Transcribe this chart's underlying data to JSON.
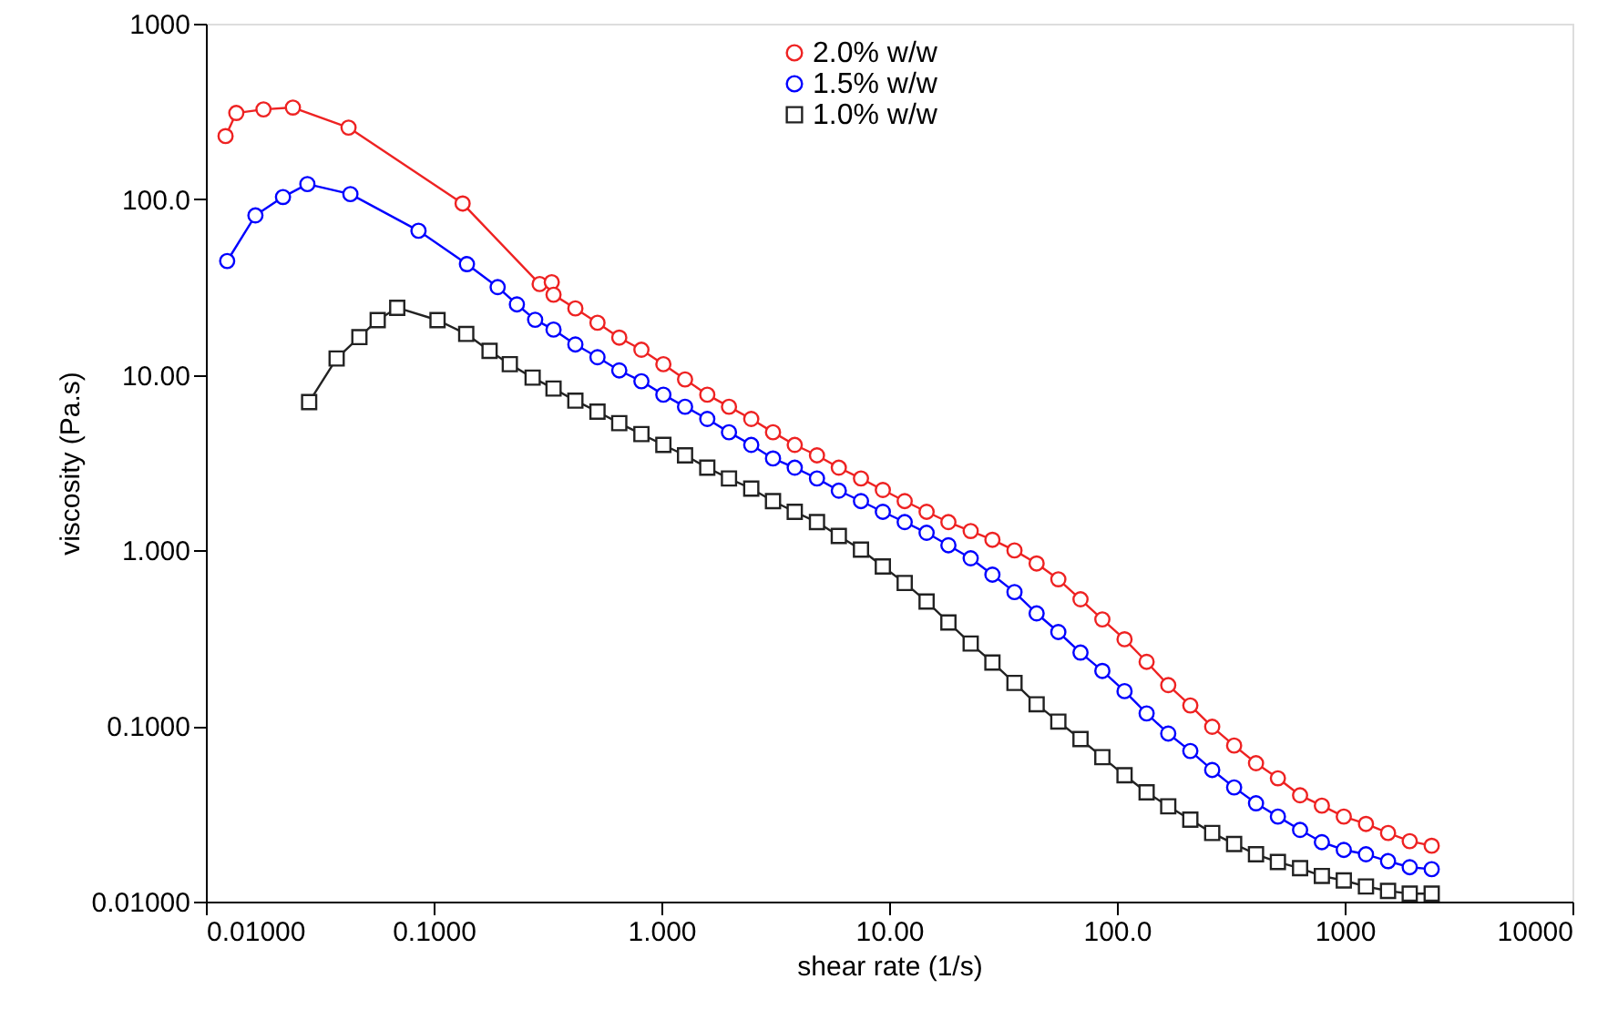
{
  "chart_data": {
    "type": "line",
    "xlabel": "shear rate (1/s)",
    "ylabel": "viscosity (Pa.s)",
    "log": "xy",
    "grid": false,
    "line_style": "solid",
    "legend": "top",
    "xlim": [
      0.01,
      10000
    ],
    "ylim": [
      0.01,
      1000
    ],
    "xticks": [
      {
        "value": 0.01,
        "label": "0.01000"
      },
      {
        "value": 0.1,
        "label": "0.1000"
      },
      {
        "value": 1,
        "label": "1.000"
      },
      {
        "value": 10,
        "label": "10.00"
      },
      {
        "value": 100,
        "label": "100.0"
      },
      1000,
      10000
    ],
    "yticks": [
      {
        "value": 0.01,
        "label": "0.01000"
      },
      {
        "value": 0.1,
        "label": "0.1000"
      },
      {
        "value": 1,
        "label": "1.000"
      },
      {
        "value": 10,
        "label": "10.00"
      },
      {
        "value": 100,
        "label": "100.0"
      },
      1000
    ],
    "series": [
      {
        "name": "2.0% w/w",
        "color": "#ee2222",
        "marker": "circle",
        "x": [
          0.0122,
          0.0136,
          0.0179,
          0.0241,
          0.0423,
          0.134,
          0.292,
          0.33,
          0.336,
          0.419,
          0.524,
          0.653,
          0.817,
          1.02,
          1.27,
          1.59,
          1.98,
          2.48,
          3.09,
          3.85,
          4.82,
          6.01,
          7.52,
          9.38,
          11.7,
          14.6,
          18.2,
          22.8,
          28.4,
          35.5,
          44.4,
          55.3,
          69.2,
          86.3,
          108,
          135,
          168,
          210,
          262,
          327,
          408,
          509,
          637,
          794,
          991,
          1240,
          1550,
          1930,
          2410
        ],
        "values": [
          229,
          310,
          325,
          333,
          256,
          94.6,
          32.9,
          33.7,
          28.6,
          23.9,
          19.8,
          16.3,
          13.9,
          11.5,
          9.42,
          7.71,
          6.58,
          5.61,
          4.71,
          3.99,
          3.48,
          2.96,
          2.57,
          2.21,
          1.91,
          1.66,
          1.45,
          1.29,
          1.15,
          1.0,
          0.843,
          0.685,
          0.527,
          0.405,
          0.312,
          0.232,
          0.171,
          0.131,
          0.099,
          0.0774,
          0.0614,
          0.0504,
          0.0403,
          0.0352,
          0.0305,
          0.0277,
          0.0246,
          0.0221,
          0.0208
        ]
      },
      {
        "name": "1.5% w/w",
        "color": "#0000ff",
        "marker": "circle",
        "x": [
          0.0124,
          0.0165,
          0.0218,
          0.0279,
          0.0431,
          0.0858,
          0.14,
          0.191,
          0.232,
          0.279,
          0.336,
          0.419,
          0.524,
          0.653,
          0.817,
          1.02,
          1.27,
          1.59,
          1.98,
          2.48,
          3.09,
          3.85,
          4.82,
          6.01,
          7.52,
          9.38,
          11.7,
          14.6,
          18.2,
          22.8,
          28.4,
          35.5,
          44.4,
          55.3,
          69.2,
          86.3,
          108,
          135,
          168,
          210,
          262,
          327,
          408,
          509,
          637,
          794,
          991,
          1240,
          1550,
          1930,
          2410
        ],
        "values": [
          44.5,
          80.9,
          103,
          122,
          107,
          66.2,
          42.7,
          31.6,
          25.2,
          20.6,
          18.1,
          14.9,
          12.6,
          10.6,
          9.2,
          7.71,
          6.58,
          5.61,
          4.71,
          3.99,
          3.34,
          2.96,
          2.57,
          2.19,
          1.91,
          1.66,
          1.45,
          1.26,
          1.07,
          0.902,
          0.728,
          0.579,
          0.438,
          0.343,
          0.262,
          0.206,
          0.158,
          0.118,
          0.0906,
          0.0721,
          0.0562,
          0.0447,
          0.0363,
          0.0305,
          0.0256,
          0.0218,
          0.0197,
          0.0186,
          0.017,
          0.0157,
          0.0153
        ]
      },
      {
        "name": "1.0% w/w",
        "color": "#222222",
        "marker": "square",
        "x": [
          0.0284,
          0.0375,
          0.0472,
          0.0568,
          0.0692,
          0.104,
          0.139,
          0.176,
          0.216,
          0.272,
          0.336,
          0.419,
          0.524,
          0.653,
          0.817,
          1.02,
          1.27,
          1.59,
          1.98,
          2.48,
          3.09,
          3.85,
          4.82,
          6.01,
          7.52,
          9.38,
          11.7,
          14.6,
          18.2,
          22.8,
          28.4,
          35.5,
          44.4,
          55.3,
          69.2,
          86.3,
          108,
          135,
          168,
          210,
          262,
          327,
          408,
          509,
          637,
          794,
          991,
          1240,
          1550,
          1930,
          2410
        ],
        "values": [
          7.0,
          12.4,
          16.4,
          20.5,
          24.1,
          20.5,
          17.1,
          13.7,
          11.5,
          9.64,
          8.36,
          7.13,
          6.17,
          5.31,
          4.6,
          3.99,
          3.48,
          2.96,
          2.57,
          2.25,
          1.91,
          1.66,
          1.45,
          1.21,
          1.01,
          0.811,
          0.653,
          0.512,
          0.389,
          0.295,
          0.23,
          0.176,
          0.133,
          0.106,
          0.0843,
          0.0665,
          0.0524,
          0.0419,
          0.0349,
          0.0293,
          0.0246,
          0.0213,
          0.0186,
          0.0168,
          0.0155,
          0.014,
          0.0132,
          0.0122,
          0.0115,
          0.0111,
          0.0111
        ]
      }
    ]
  }
}
